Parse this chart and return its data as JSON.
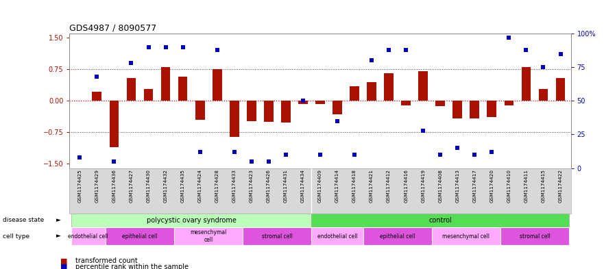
{
  "title": "GDS4987 / 8090577",
  "samples": [
    "GSM1174425",
    "GSM1174429",
    "GSM1174436",
    "GSM1174427",
    "GSM1174430",
    "GSM1174432",
    "GSM1174435",
    "GSM1174424",
    "GSM1174428",
    "GSM1174433",
    "GSM1174423",
    "GSM1174426",
    "GSM1174431",
    "GSM1174434",
    "GSM1174409",
    "GSM1174414",
    "GSM1174418",
    "GSM1174421",
    "GSM1174412",
    "GSM1174416",
    "GSM1174419",
    "GSM1174408",
    "GSM1174413",
    "GSM1174417",
    "GSM1174420",
    "GSM1174410",
    "GSM1174411",
    "GSM1174415",
    "GSM1174422"
  ],
  "bar_values": [
    0.0,
    0.22,
    -1.1,
    0.55,
    0.28,
    0.8,
    0.58,
    -0.45,
    0.75,
    -0.85,
    -0.48,
    -0.5,
    -0.52,
    -0.08,
    -0.08,
    -0.32,
    0.35,
    0.45,
    0.65,
    -0.1,
    0.7,
    -0.12,
    -0.42,
    -0.42,
    -0.38,
    -0.1,
    0.8,
    0.28,
    0.55
  ],
  "percentile_values": [
    8,
    68,
    5,
    78,
    90,
    90,
    90,
    12,
    88,
    12,
    5,
    5,
    10,
    50,
    10,
    35,
    10,
    80,
    88,
    88,
    28,
    10,
    15,
    10,
    12,
    97,
    88,
    75,
    85
  ],
  "disease_state_groups": [
    {
      "label": "polycystic ovary syndrome",
      "start": 0,
      "end": 13,
      "color": "#bbffbb"
    },
    {
      "label": "control",
      "start": 14,
      "end": 28,
      "color": "#55dd55"
    }
  ],
  "cell_type_groups": [
    {
      "label": "endothelial cell",
      "start": 0,
      "end": 1,
      "color": "#ffaaff"
    },
    {
      "label": "epithelial cell",
      "start": 2,
      "end": 5,
      "color": "#dd55dd"
    },
    {
      "label": "mesenchymal\ncell",
      "start": 6,
      "end": 9,
      "color": "#ffaaff"
    },
    {
      "label": "stromal cell",
      "start": 10,
      "end": 13,
      "color": "#dd55dd"
    },
    {
      "label": "endothelial cell",
      "start": 14,
      "end": 16,
      "color": "#ffaaff"
    },
    {
      "label": "epithelial cell",
      "start": 17,
      "end": 20,
      "color": "#dd55dd"
    },
    {
      "label": "mesenchymal cell",
      "start": 21,
      "end": 24,
      "color": "#ffaaff"
    },
    {
      "label": "stromal cell",
      "start": 25,
      "end": 28,
      "color": "#dd55dd"
    }
  ],
  "bar_color": "#aa1100",
  "dot_color": "#0000bb",
  "ylim": [
    -1.6,
    1.6
  ],
  "y2lim": [
    0,
    100
  ],
  "yticks": [
    -1.5,
    -0.75,
    0,
    0.75,
    1.5
  ],
  "y2ticks": [
    0,
    25,
    50,
    75,
    100
  ],
  "y2ticklabels": [
    "0",
    "25",
    "50",
    "75",
    "100%"
  ],
  "hline_red_color": "#cc0000",
  "legend_bar_label": "transformed count",
  "legend_dot_label": "percentile rank within the sample",
  "disease_state_text": "disease state",
  "cell_type_text": "cell type",
  "xlabel_color": "#555555",
  "tick_bg_color": "#d8d8d8"
}
